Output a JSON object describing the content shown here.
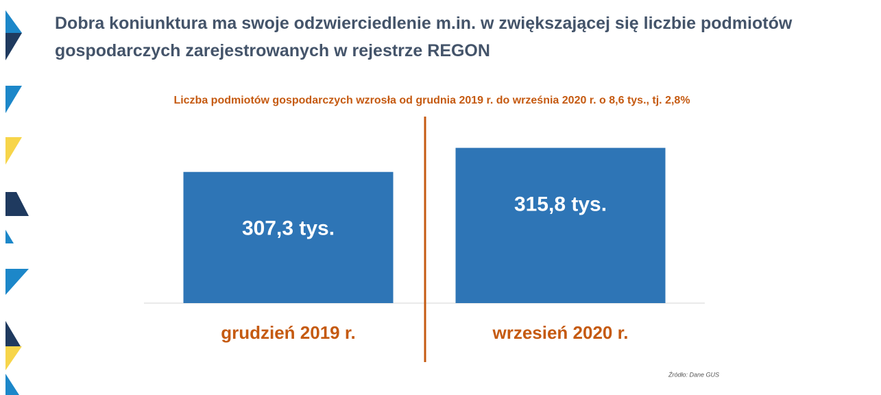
{
  "chart_data": {
    "type": "bar",
    "title": "Dobra koniunktura ma swoje odzwierciedlenie m.in. w zwiększającej się liczbie podmiotów gospodarczych zarejestrowanych w rejestrze REGON",
    "subtitle": "Liczba podmiotów gospodarczych wzrosła od grudnia 2019 r. do września 2020 r. o 8,6 tys., tj. 2,8%",
    "categories": [
      "grudzień 2019 r.",
      "wrzesień 2020 r."
    ],
    "values": [
      307.3,
      315.8
    ],
    "value_labels": [
      "307,3 tys.",
      "315,8 tys."
    ],
    "color": "#2e75b6",
    "ylim": [
      261,
      322
    ],
    "source": "Źródło: Dane GUS"
  }
}
